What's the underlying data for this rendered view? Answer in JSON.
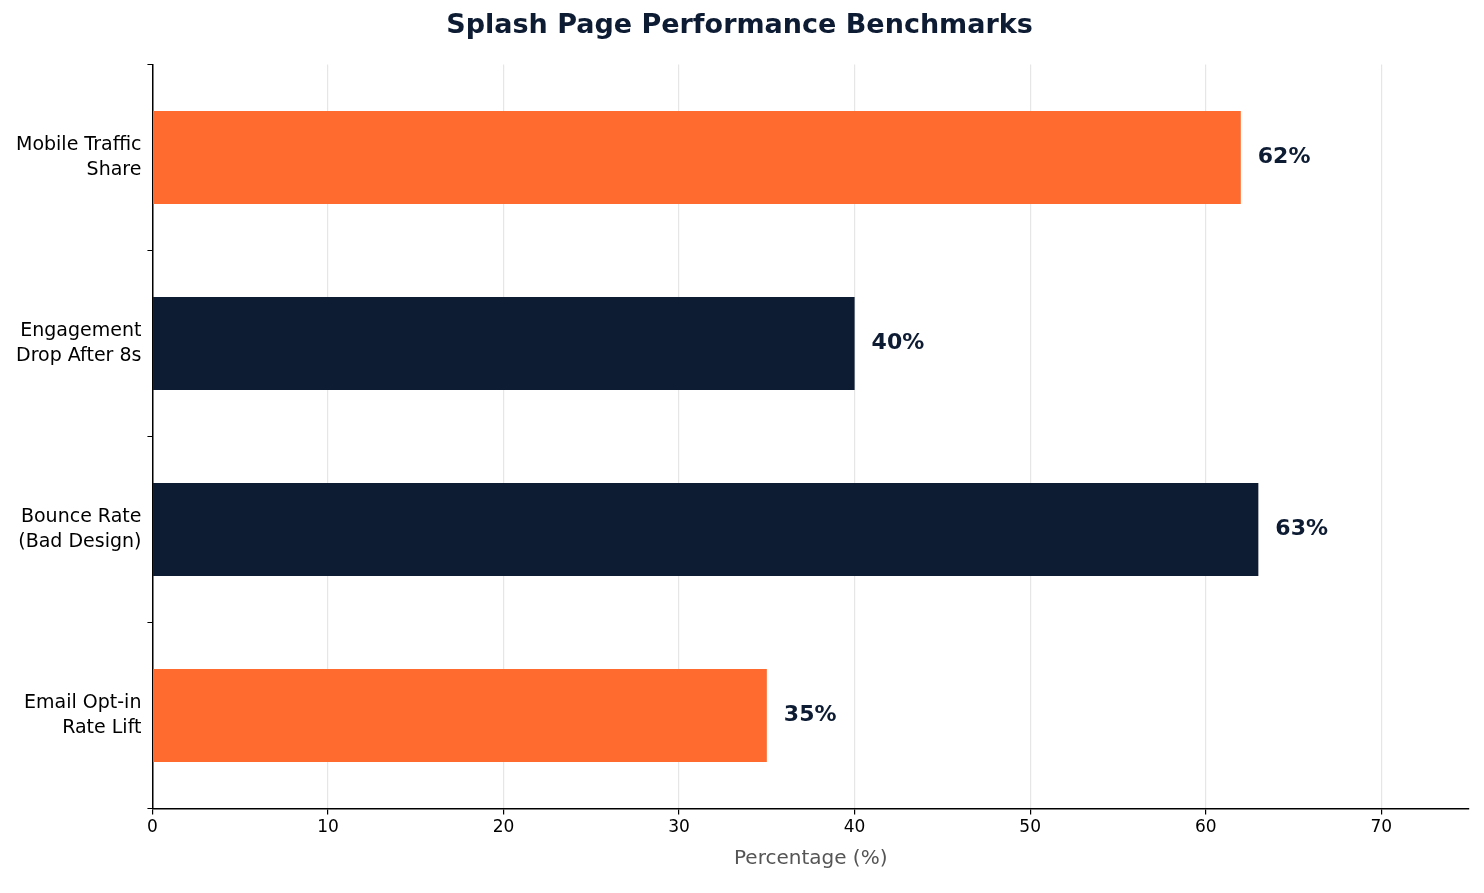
{
  "chart_data": {
    "type": "bar",
    "orientation": "horizontal",
    "title": "Splash Page Performance Benchmarks",
    "xlabel": "Percentage (%)",
    "categories": [
      "Mobile Traffic\nShare",
      "Engagement\nDrop After 8s",
      "Bounce Rate\n(Bad Design)",
      "Email Opt-in\nRate Lift"
    ],
    "values": [
      62,
      40,
      63,
      35
    ],
    "colors": [
      "#ff6b2f",
      "#0d1b33",
      "#0d1b33",
      "#ff6b2f"
    ],
    "value_labels": [
      "62%",
      "40%",
      "63%",
      "35%"
    ],
    "xlim": [
      0,
      75
    ],
    "xticks": [
      0,
      10,
      20,
      30,
      40,
      50,
      60,
      70
    ],
    "grid": "x",
    "legend": false
  }
}
